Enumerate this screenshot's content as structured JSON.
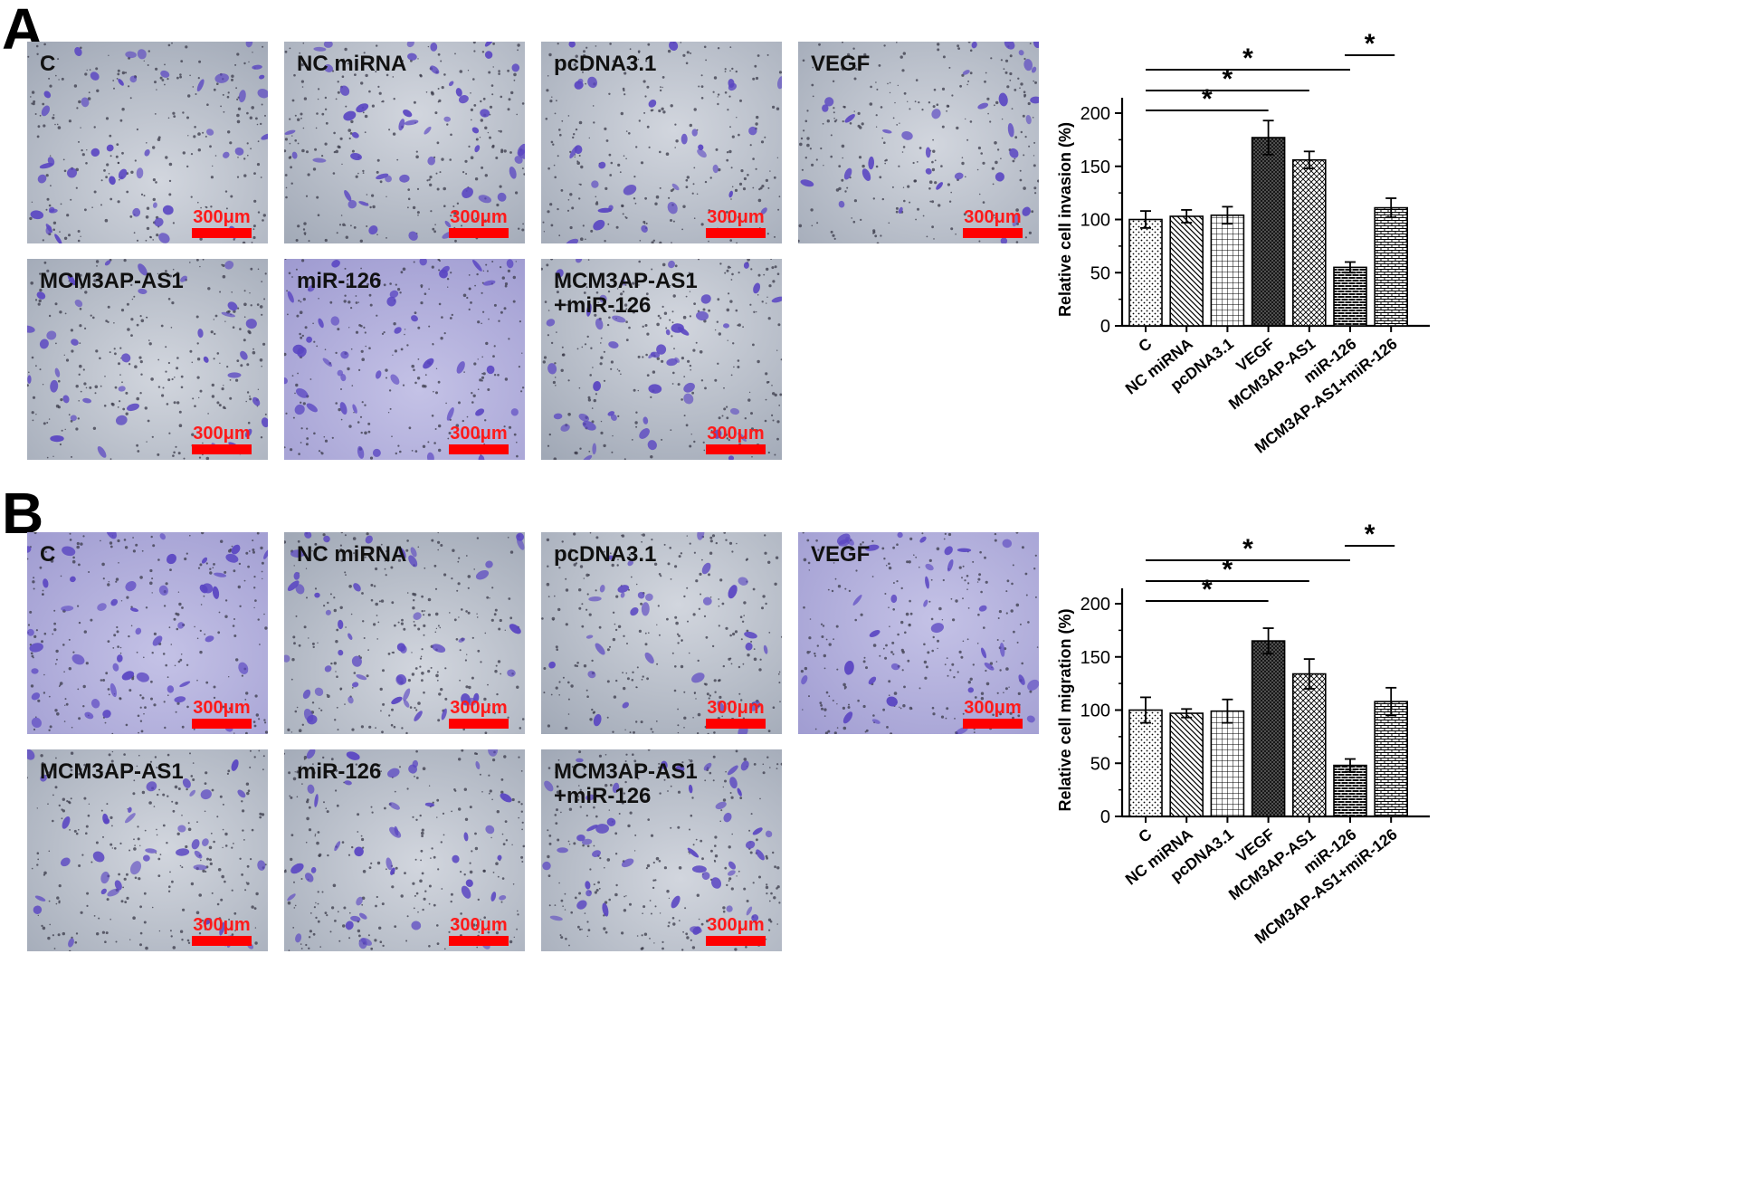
{
  "panels": [
    {
      "letter": "A",
      "image_labels": [
        "C",
        "NC miRNA",
        "pcDNA3.1",
        "VEGF",
        "MCM3AP-AS1",
        "miR-126",
        "MCM3AP-AS1\n+miR-126"
      ],
      "scale_bar": "300μm",
      "chart_data": {
        "type": "bar",
        "title": "",
        "xlabel": "",
        "ylabel": "Relative cell invasion (%)",
        "ylim": [
          0,
          200
        ],
        "yticks": [
          0,
          50,
          100,
          150,
          200
        ],
        "categories": [
          "C",
          "NC miRNA",
          "pcDNA3.1",
          "VEGF",
          "MCM3AP-AS1",
          "miR-126",
          "MCM3AP-AS1+miR-126"
        ],
        "values": [
          100,
          103,
          104,
          177,
          156,
          55,
          111
        ],
        "errors": [
          8,
          6,
          8,
          16,
          8,
          5,
          9
        ],
        "significance": [
          {
            "from": "C",
            "to": "VEGF",
            "label": "*"
          },
          {
            "from": "C",
            "to": "MCM3AP-AS1",
            "label": "*"
          },
          {
            "from": "C",
            "to": "miR-126",
            "label": "*"
          },
          {
            "from": "miR-126",
            "to": "MCM3AP-AS1+miR-126",
            "label": "*"
          }
        ],
        "grid": false
      }
    },
    {
      "letter": "B",
      "image_labels": [
        "C",
        "NC miRNA",
        "pcDNA3.1",
        "VEGF",
        "MCM3AP-AS1",
        "miR-126",
        "MCM3AP-AS1\n+miR-126"
      ],
      "scale_bar": "300μm",
      "chart_data": {
        "type": "bar",
        "title": "",
        "xlabel": "",
        "ylabel": "Relative cell migration (%)",
        "ylim": [
          0,
          200
        ],
        "yticks": [
          0,
          50,
          100,
          150,
          200
        ],
        "categories": [
          "C",
          "NC miRNA",
          "pcDNA3.1",
          "VEGF",
          "MCM3AP-AS1",
          "miR-126",
          "MCM3AP-AS1+miR-126"
        ],
        "values": [
          100,
          97,
          99,
          165,
          134,
          48,
          108
        ],
        "errors": [
          12,
          4,
          11,
          12,
          14,
          6,
          13
        ],
        "significance": [
          {
            "from": "C",
            "to": "VEGF",
            "label": "*"
          },
          {
            "from": "C",
            "to": "MCM3AP-AS1",
            "label": "*"
          },
          {
            "from": "C",
            "to": "miR-126",
            "label": "*"
          },
          {
            "from": "miR-126",
            "to": "MCM3AP-AS1+miR-126",
            "label": "*"
          }
        ],
        "grid": false
      }
    }
  ],
  "colors": {
    "tint_gray": "#9ea6b4",
    "tint_purple": "#9c98cf",
    "cell_stain": "#5a46c2",
    "pore_dots": "#3a3a48",
    "scale_bar": "#ff0000",
    "bar_outline": "#000000"
  }
}
